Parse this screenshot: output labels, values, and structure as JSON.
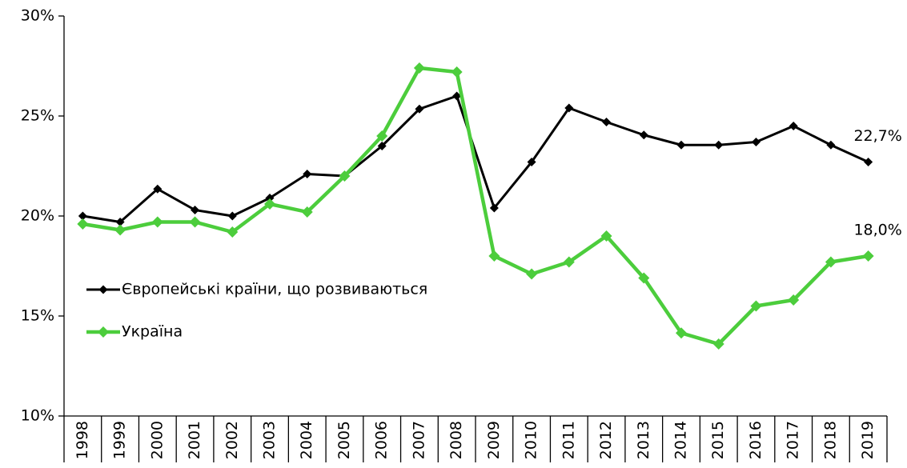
{
  "chart_data": {
    "type": "line",
    "categories": [
      "1998",
      "1999",
      "2000",
      "2001",
      "2002",
      "2003",
      "2004",
      "2005",
      "2006",
      "2007",
      "2008",
      "2009",
      "2010",
      "2011",
      "2012",
      "2013",
      "2014",
      "2015",
      "2016",
      "2017",
      "2018",
      "2019"
    ],
    "series": [
      {
        "name": "Європейські країни, що розвиваються",
        "color": "#000000",
        "values": [
          20.0,
          19.7,
          21.35,
          20.3,
          20.0,
          20.9,
          22.1,
          22.0,
          23.5,
          25.35,
          26.0,
          20.4,
          22.7,
          25.4,
          24.7,
          24.05,
          23.55,
          23.55,
          23.7,
          24.5,
          23.55,
          22.7
        ],
        "value_labels": [
          null,
          null,
          null,
          null,
          null,
          null,
          null,
          null,
          null,
          null,
          null,
          null,
          null,
          null,
          null,
          null,
          null,
          null,
          null,
          null,
          null,
          "22,7%"
        ]
      },
      {
        "name": "Україна",
        "color": "#4ccd3c",
        "values": [
          19.6,
          19.3,
          19.7,
          19.7,
          19.2,
          20.6,
          20.2,
          22.0,
          24.0,
          27.4,
          27.2,
          18.0,
          17.1,
          17.7,
          19.0,
          16.9,
          14.15,
          13.6,
          15.5,
          15.8,
          17.7,
          18.0
        ],
        "value_labels": [
          null,
          null,
          null,
          null,
          null,
          null,
          null,
          null,
          null,
          null,
          null,
          null,
          null,
          null,
          null,
          null,
          null,
          null,
          null,
          null,
          null,
          "18,0%"
        ]
      }
    ],
    "ylim": [
      10,
      30
    ],
    "yticks": [
      {
        "value": 10,
        "label": "10%"
      },
      {
        "value": 15,
        "label": "15%"
      },
      {
        "value": 20,
        "label": "20%"
      },
      {
        "value": 25,
        "label": "25%"
      },
      {
        "value": 30,
        "label": "30%"
      }
    ],
    "grid": false,
    "legend": "left"
  }
}
